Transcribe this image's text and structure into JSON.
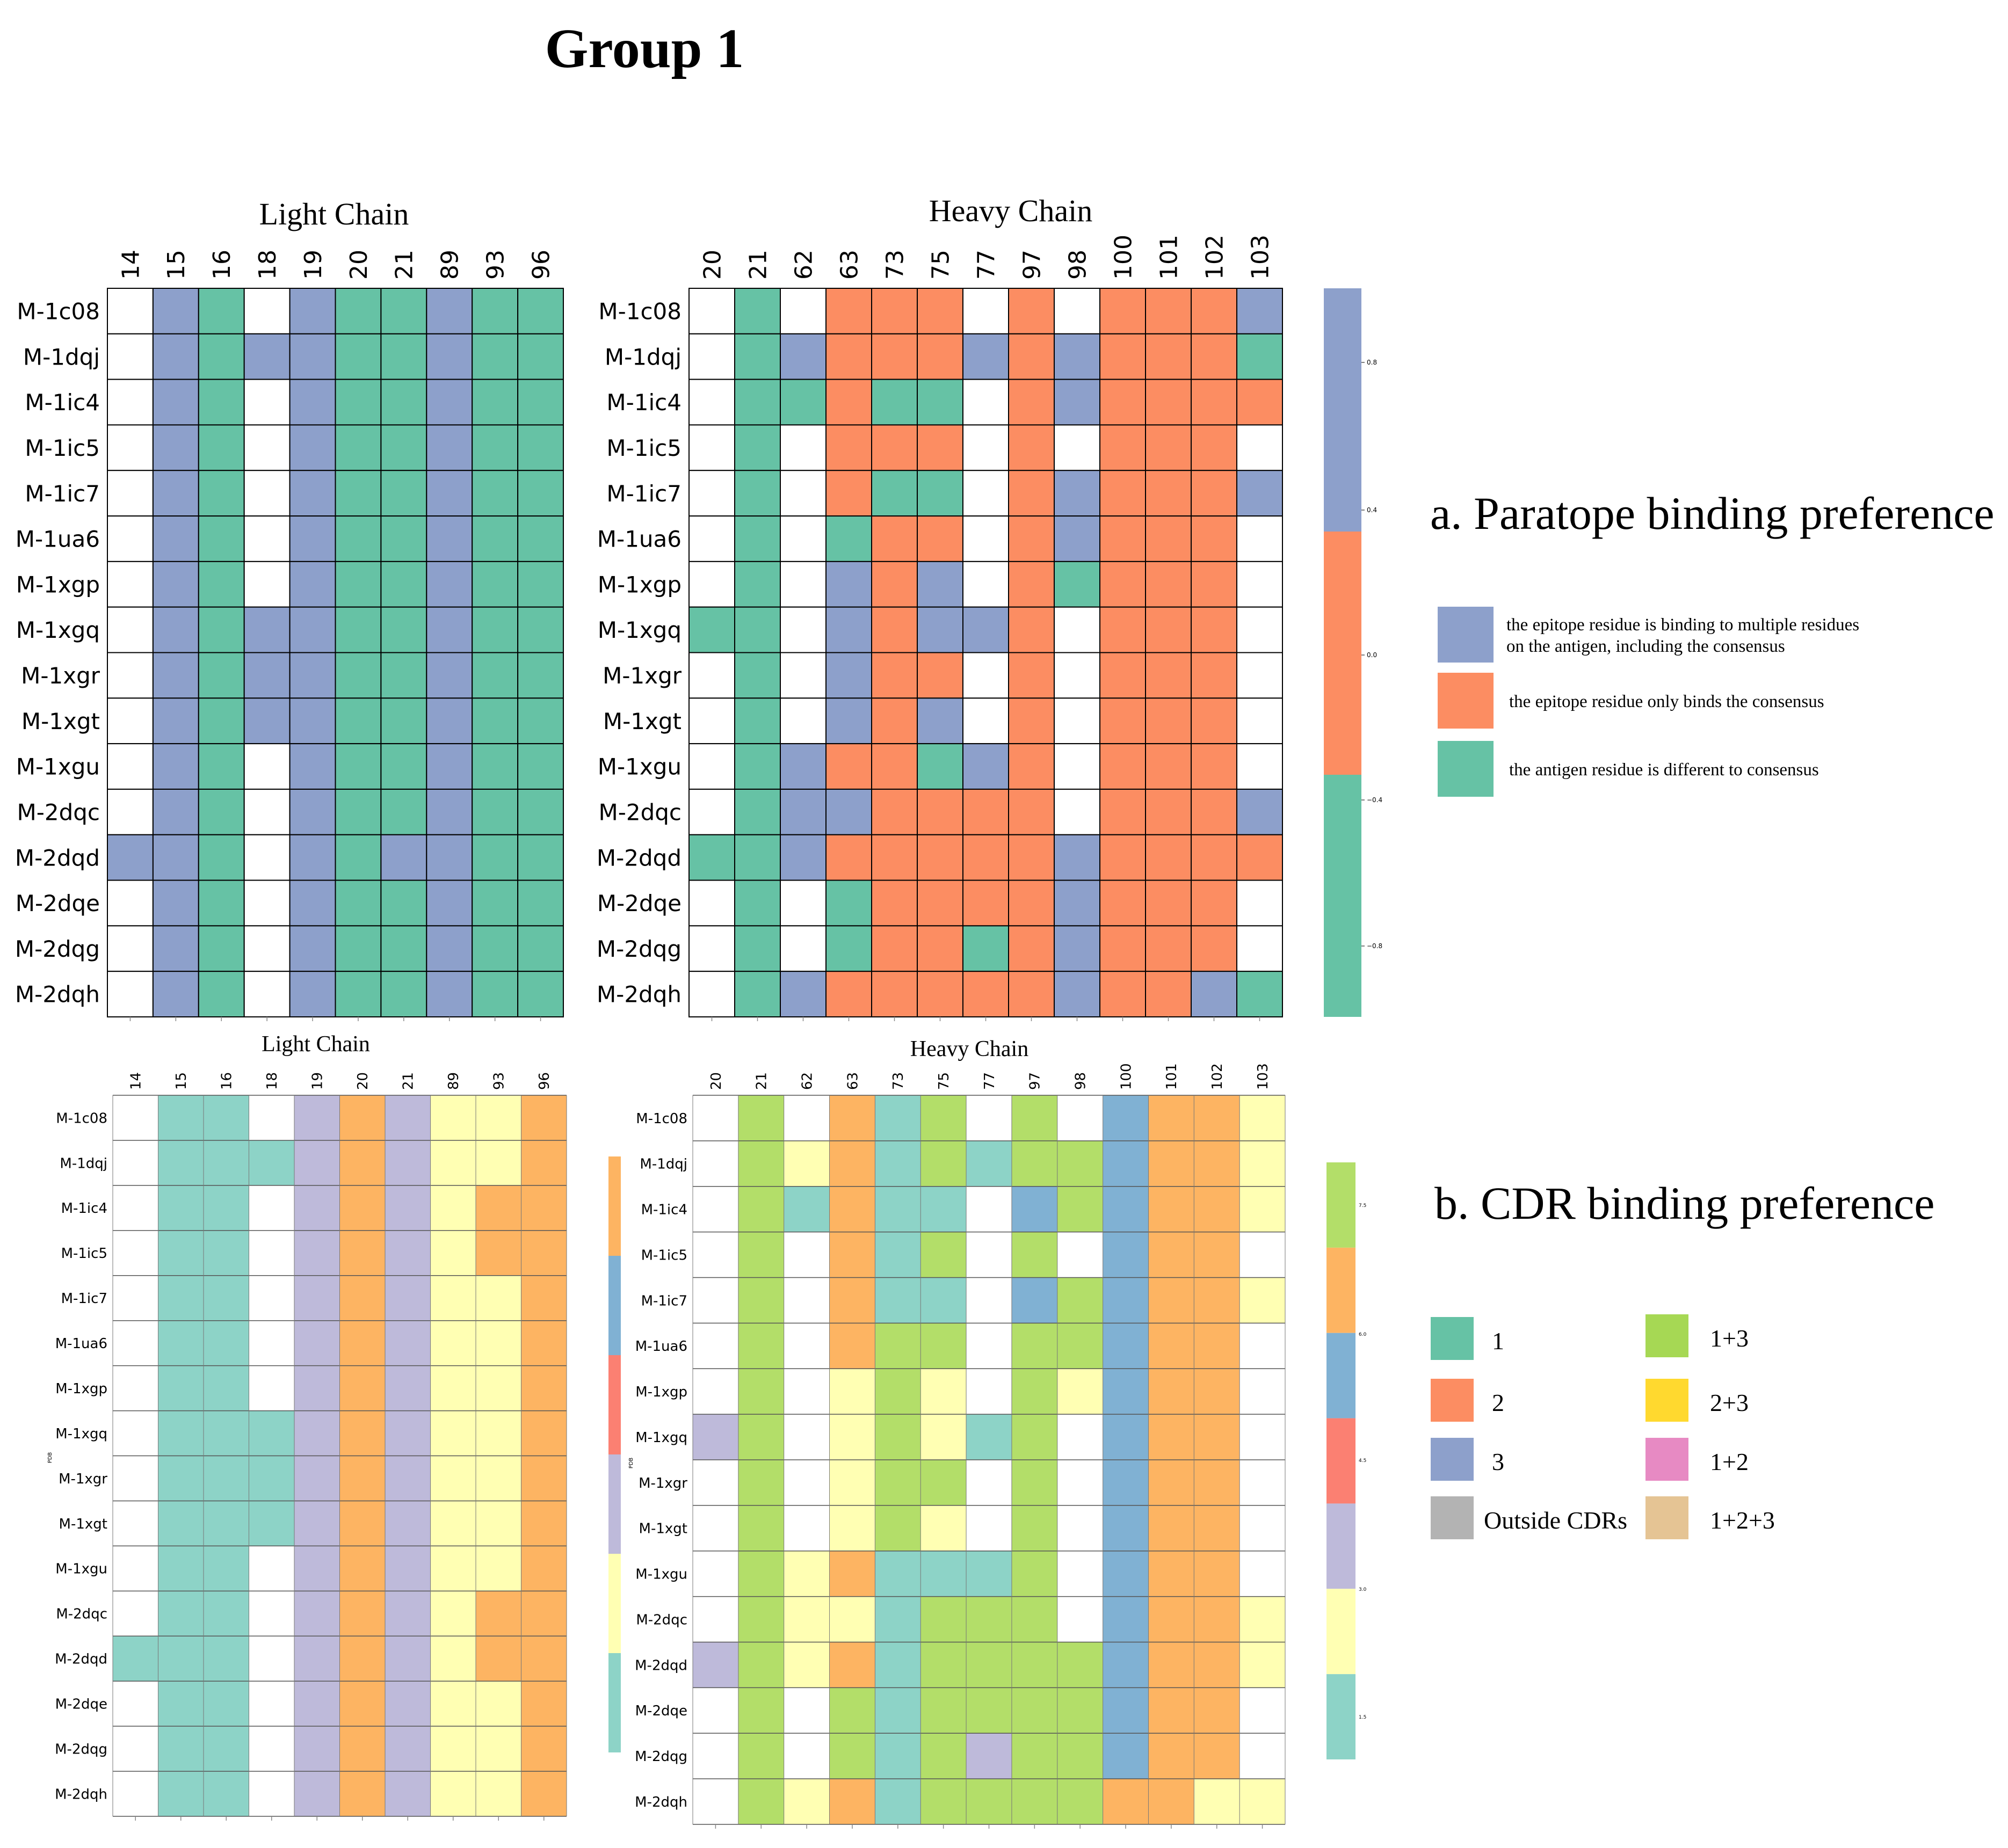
{
  "title": "Group 1",
  "rows": [
    "M-1c08",
    "M-1dqj",
    "M-1ic4",
    "M-1ic5",
    "M-1ic7",
    "M-1ua6",
    "M-1xgp",
    "M-1xgq",
    "M-1xgr",
    "M-1xgt",
    "M-1xgu",
    "M-2dqc",
    "M-2dqd",
    "M-2dqe",
    "M-2dqg",
    "M-2dqh"
  ],
  "light_cols": [
    "14",
    "15",
    "16",
    "18",
    "19",
    "20",
    "21",
    "89",
    "93",
    "96"
  ],
  "heavy_cols": [
    "20",
    "21",
    "62",
    "63",
    "73",
    "75",
    "77",
    "97",
    "98",
    "100",
    "101",
    "102",
    "103"
  ],
  "section_a": {
    "title": "a.  Paratope binding preference",
    "light_title": "Light Chain",
    "heavy_title": "Heavy Chain",
    "colors": {
      "blue": "#8DA0CB",
      "orange": "#FC8D62",
      "green": "#66C2A5"
    },
    "legend": [
      {
        "color": "#8DA0CB",
        "lines": [
          "the epitope residue is binding to multiple residues",
          "on the antigen, including the consensus"
        ]
      },
      {
        "color": "#FC8D62",
        "lines": [
          "the epitope residue only binds the consensus"
        ]
      },
      {
        "color": "#66C2A5",
        "lines": [
          "the antigen residue is different to consensus"
        ]
      }
    ],
    "colorbar_ticks": [
      "0.8",
      "0.4",
      "0.0",
      "−0.4",
      "−0.8"
    ]
  },
  "section_b": {
    "title": "b. CDR binding preference",
    "light_title": "Light Chain",
    "heavy_title": "Heavy Chain",
    "colors": {
      "teal": "#8DD3C7",
      "yellow": "#FFFFB3",
      "lavender": "#BEBADA",
      "salmon": "#FB8072",
      "blue": "#80B1D3",
      "orange": "#FDB462",
      "green": "#B3DE69"
    },
    "legend": [
      {
        "label": "1",
        "color": "#66C2A5"
      },
      {
        "label": "1+3",
        "color": "#A6D854"
      },
      {
        "label": "2",
        "color": "#FC8D62"
      },
      {
        "label": "2+3",
        "color": "#FFD92F"
      },
      {
        "label": "3",
        "color": "#8DA0CB"
      },
      {
        "label": "1+2",
        "color": "#E78AC3"
      },
      {
        "label": "Outside CDRs",
        "color": "#B3B3B3"
      },
      {
        "label": "1+2+3",
        "color": "#E5C494"
      }
    ],
    "light_cbar_colors": [
      "#FDB462",
      "#80B1D3",
      "#FB8072",
      "#BEBADA",
      "#FFFFB3",
      "#8DD3C7"
    ],
    "heavy_cbar_colors": [
      "#B3DE69",
      "#FDB462",
      "#80B1D3",
      "#FB8072",
      "#BEBADA",
      "#FFFFB3",
      "#8DD3C7"
    ],
    "heavy_cbar_ticks": [
      "7.5",
      "6.0",
      "4.5",
      "3.0",
      "1.5"
    ],
    "y_axis_label": "PDB"
  },
  "chart_data": [
    {
      "type": "heatmap",
      "panel": "a-light",
      "title": "Light Chain",
      "rows": [
        "M-1c08",
        "M-1dqj",
        "M-1ic4",
        "M-1ic5",
        "M-1ic7",
        "M-1ua6",
        "M-1xgp",
        "M-1xgq",
        "M-1xgr",
        "M-1xgt",
        "M-1xgu",
        "M-2dqc",
        "M-2dqd",
        "M-2dqe",
        "M-2dqg",
        "M-2dqh"
      ],
      "columns": [
        "14",
        "15",
        "16",
        "18",
        "19",
        "20",
        "21",
        "89",
        "93",
        "96"
      ],
      "legend": {
        "B": "blue",
        "G": "green",
        "W": "none"
      },
      "cells": [
        "WBGWBGGBGG",
        "WBGBBGGBGG",
        "WBGWBGGBGG",
        "WBGWBGGBGG",
        "WBGWBGGBGG",
        "WBGWBGGBGG",
        "WBGWBGGBGG",
        "WBGBBGGBGG",
        "WBGBBGGBGG",
        "WBGBBGGBGG",
        "WBGWBGGBGG",
        "WBGWBGGBGG",
        "BBGWBGBBGG",
        "WBGWBGGBGG",
        "WBGWBGGBGG",
        "WBGWBGGBGG"
      ]
    },
    {
      "type": "heatmap",
      "panel": "a-heavy",
      "title": "Heavy Chain",
      "rows": [
        "M-1c08",
        "M-1dqj",
        "M-1ic4",
        "M-1ic5",
        "M-1ic7",
        "M-1ua6",
        "M-1xgp",
        "M-1xgq",
        "M-1xgr",
        "M-1xgt",
        "M-1xgu",
        "M-2dqc",
        "M-2dqd",
        "M-2dqe",
        "M-2dqg",
        "M-2dqh"
      ],
      "columns": [
        "20",
        "21",
        "62",
        "63",
        "73",
        "75",
        "77",
        "97",
        "98",
        "100",
        "101",
        "102",
        "103"
      ],
      "legend": {
        "B": "blue",
        "O": "orange",
        "G": "green",
        "W": "none"
      },
      "cells": [
        "WGWOOOWOWOOOB",
        "WGBOOOBOBOOOG",
        "WGGOGGWOBOOOO",
        "WGWOOOWOWOOOW",
        "WGWOGGWOBOOOB",
        "WGWGOOWOBOOOW",
        "WGWBOBWOGOOOW",
        "GGWBOBBOWOOOW",
        "WGWBOOWOWOOOW",
        "WGWBOBWOWOOOW",
        "WGBOOGBOWOOOW",
        "WGBBOOOOWOOOB",
        "GGBOOOOOBOOOO",
        "WGWGOOOOBOOOW",
        "WGWGOOGOBOOOW",
        "WGBOOOOOBOOBG"
      ]
    },
    {
      "type": "heatmap",
      "panel": "b-light",
      "title": "Light Chain",
      "rows": [
        "M-1c08",
        "M-1dqj",
        "M-1ic4",
        "M-1ic5",
        "M-1ic7",
        "M-1ua6",
        "M-1xgp",
        "M-1xgq",
        "M-1xgr",
        "M-1xgt",
        "M-1xgu",
        "M-2dqc",
        "M-2dqd",
        "M-2dqe",
        "M-2dqg",
        "M-2dqh"
      ],
      "columns": [
        "14",
        "15",
        "16",
        "18",
        "19",
        "20",
        "21",
        "89",
        "93",
        "96"
      ],
      "legend": {
        "T": "teal",
        "L": "lavender",
        "O": "orange",
        "Y": "yellow",
        "W": "none"
      },
      "cells": [
        "WTTWLOLYYO",
        "WTTTLOLYYO",
        "WTTWLOLYOO",
        "WTTWLOLYOO",
        "WTTWLOLYYO",
        "WTTWLOLYYO",
        "WTTWLOLYYO",
        "WTTTLOLYYO",
        "WTTTLOLYYO",
        "WTTTLOLYYO",
        "WTTWLOLYYO",
        "WTTWLOLYOO",
        "TTTWLOLYOO",
        "WTTWLOLYYO",
        "WTTWLOLYYO",
        "WTTWLOLYYO"
      ]
    },
    {
      "type": "heatmap",
      "panel": "b-heavy",
      "title": "Heavy Chain",
      "rows": [
        "M-1c08",
        "M-1dqj",
        "M-1ic4",
        "M-1ic5",
        "M-1ic7",
        "M-1ua6",
        "M-1xgp",
        "M-1xgq",
        "M-1xgr",
        "M-1xgt",
        "M-1xgu",
        "M-2dqc",
        "M-2dqd",
        "M-2dqe",
        "M-2dqg",
        "M-2dqh"
      ],
      "columns": [
        "20",
        "21",
        "62",
        "63",
        "73",
        "75",
        "77",
        "97",
        "98",
        "100",
        "101",
        "102",
        "103"
      ],
      "legend": {
        "G": "green",
        "Y": "yellow",
        "O": "orange",
        "T": "teal",
        "B": "blue",
        "L": "lavender",
        "W": "none"
      },
      "cells": [
        "WGWOTGWGWBOOY",
        "WGYOTGTGGBOOY",
        "WGTOTTWBGBOOY",
        "WGWOTGWGWBOOW",
        "WGWOTTWBGBOOY",
        "WGWOGGWGGBOOW",
        "WGWYGYWGYBOOW",
        "LGWYGYTGWBOOW",
        "WGWYGGWGWBOOW",
        "WGWYGYWGWBOOW",
        "WGYOTTTGWBOOW",
        "WGYYTGGGWBOOY",
        "LGYOTGGGGBOOY",
        "WGWGTGGGGBOOW",
        "WGWGTGLGGBOOW",
        "WGYOTGGGGOOYY"
      ]
    }
  ]
}
